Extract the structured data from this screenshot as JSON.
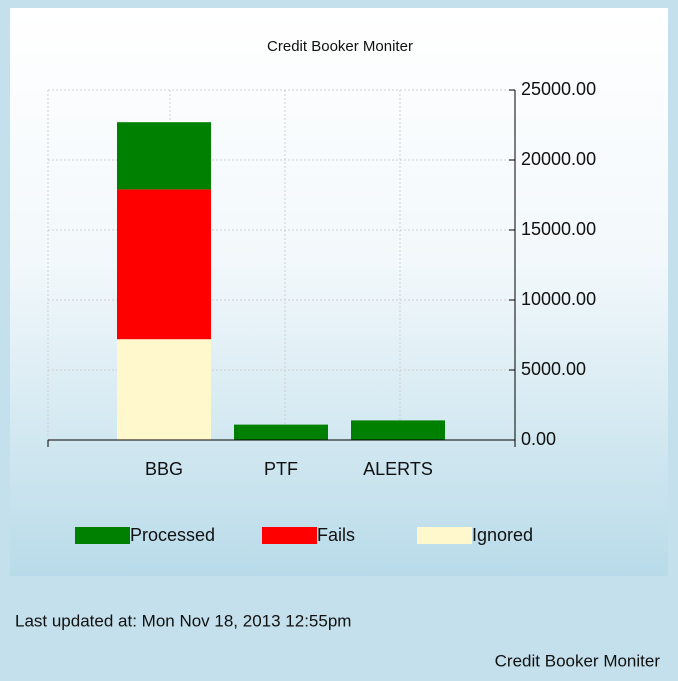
{
  "chart_data": {
    "type": "bar",
    "stacked": true,
    "title": "Credit Booker Moniter",
    "categories": [
      "BBG",
      "PTF",
      "ALERTS"
    ],
    "series": [
      {
        "name": "Processed",
        "color": "#008000",
        "values": [
          4800,
          1100,
          1400
        ]
      },
      {
        "name": "Fails",
        "color": "#ff0000",
        "values": [
          10700,
          0,
          0
        ]
      },
      {
        "name": "Ignored",
        "color": "#fff8cc",
        "values": [
          7200,
          0,
          0
        ]
      }
    ],
    "ylim": [
      0,
      25000
    ],
    "yticks": [
      {
        "value": 0,
        "label": "0.00"
      },
      {
        "value": 5000,
        "label": "5000.00"
      },
      {
        "value": 10000,
        "label": "10000.00"
      },
      {
        "value": 15000,
        "label": "15000.00"
      },
      {
        "value": 20000,
        "label": "20000.00"
      },
      {
        "value": 25000,
        "label": "25000.00"
      }
    ],
    "grid": true,
    "legend": "bottom",
    "y_axis_side": "right"
  },
  "footer": {
    "status": "Last updated at: Mon Nov 18, 2013 12:55pm",
    "caption": "Credit Booker Moniter"
  }
}
